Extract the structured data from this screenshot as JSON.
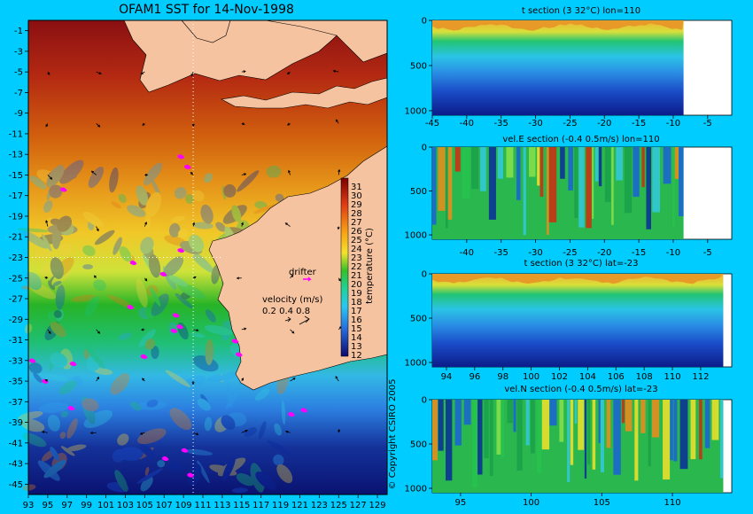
{
  "chart_data": [
    {
      "type": "heatmap",
      "title": "OFAM1 SST for 14-Nov-1998",
      "x_ticks": [
        "93",
        "95",
        "97",
        "99",
        "101",
        "103",
        "105",
        "107",
        "109",
        "111",
        "113",
        "115",
        "117",
        "119",
        "121",
        "123",
        "125",
        "127",
        "129"
      ],
      "y_ticks": [
        "-1",
        "-3",
        "-5",
        "-7",
        "-9",
        "-11",
        "-13",
        "-15",
        "-17",
        "-19",
        "-21",
        "-23",
        "-25",
        "-27",
        "-29",
        "-31",
        "-33",
        "-35",
        "-37",
        "-39",
        "-41",
        "-43",
        "-45"
      ],
      "xlim": [
        93,
        130
      ],
      "ylim": [
        -46,
        0
      ],
      "colorbar": {
        "label": "temperature (°C)",
        "ticks": [
          "31",
          "30",
          "29",
          "28",
          "27",
          "26",
          "25",
          "24",
          "23",
          "22",
          "21",
          "20",
          "19",
          "18",
          "17",
          "16",
          "15",
          "14",
          "13",
          "12"
        ]
      },
      "section_lines": {
        "lon": 110,
        "lat": -23
      },
      "drifter_label": "drifter",
      "velocity_legend": {
        "label": "velocity (m/s)",
        "values": [
          "0.2",
          "0.4",
          "0.8"
        ]
      },
      "copyright": "© Copyright CSIRO 2005",
      "drifters": [
        [
          108.7,
          -13.2
        ],
        [
          109.4,
          -14.2
        ],
        [
          96.6,
          -16.4
        ],
        [
          108.7,
          -22.3
        ],
        [
          103.8,
          -23.5
        ],
        [
          106.9,
          -24.6
        ],
        [
          103.5,
          -27.8
        ],
        [
          108.2,
          -28.6
        ],
        [
          108.6,
          -29.7
        ],
        [
          108.0,
          -30.1
        ],
        [
          114.3,
          -31.1
        ],
        [
          114.7,
          -32.4
        ],
        [
          104.9,
          -32.6
        ],
        [
          93.4,
          -33.0
        ],
        [
          97.6,
          -33.3
        ],
        [
          94.7,
          -35.0
        ],
        [
          97.4,
          -37.6
        ],
        [
          120.1,
          -38.2
        ],
        [
          121.4,
          -37.8
        ],
        [
          107.1,
          -42.5
        ],
        [
          109.1,
          -41.7
        ],
        [
          109.7,
          -44.1
        ]
      ]
    },
    {
      "type": "heatmap",
      "title": "t section (3      32°C) lon=110",
      "x_ticks": [
        "-45",
        "-40",
        "-35",
        "-30",
        "-25",
        "-20",
        "-15",
        "-10",
        "-5"
      ],
      "xlim": [
        -45,
        -1.5
      ],
      "y_ticks": [
        "0",
        "500",
        "1000"
      ],
      "ylim": [
        1050,
        0
      ],
      "land_from": -8.5
    },
    {
      "type": "heatmap",
      "title": "vel.E section (-0.4      0.5m/s) lon=110",
      "x_ticks": [
        "-40",
        "-35",
        "-30",
        "-25",
        "-20",
        "-15",
        "-10",
        "-5"
      ],
      "xlim": [
        -45,
        -1.5
      ],
      "y_ticks": [
        "0",
        "500",
        "1000"
      ],
      "ylim": [
        1050,
        0
      ],
      "land_from": -8.5
    },
    {
      "type": "heatmap",
      "title": "t section (3      32°C) lat=-23",
      "x_ticks": [
        "94",
        "96",
        "98",
        "100",
        "102",
        "104",
        "106",
        "108",
        "110",
        "112"
      ],
      "xlim": [
        93,
        114.2
      ],
      "y_ticks": [
        "0",
        "500",
        "1000"
      ],
      "ylim": [
        1050,
        0
      ],
      "land_from": 113.6
    },
    {
      "type": "heatmap",
      "title": "vel.N section (-0.4      0.5m/s) lat=-23",
      "x_ticks": [
        "95",
        "100",
        "105",
        "110"
      ],
      "xlim": [
        93,
        114.2
      ],
      "y_ticks": [
        "0",
        "500",
        "1000"
      ],
      "ylim": [
        1050,
        0
      ],
      "land_from": 113.6
    }
  ]
}
